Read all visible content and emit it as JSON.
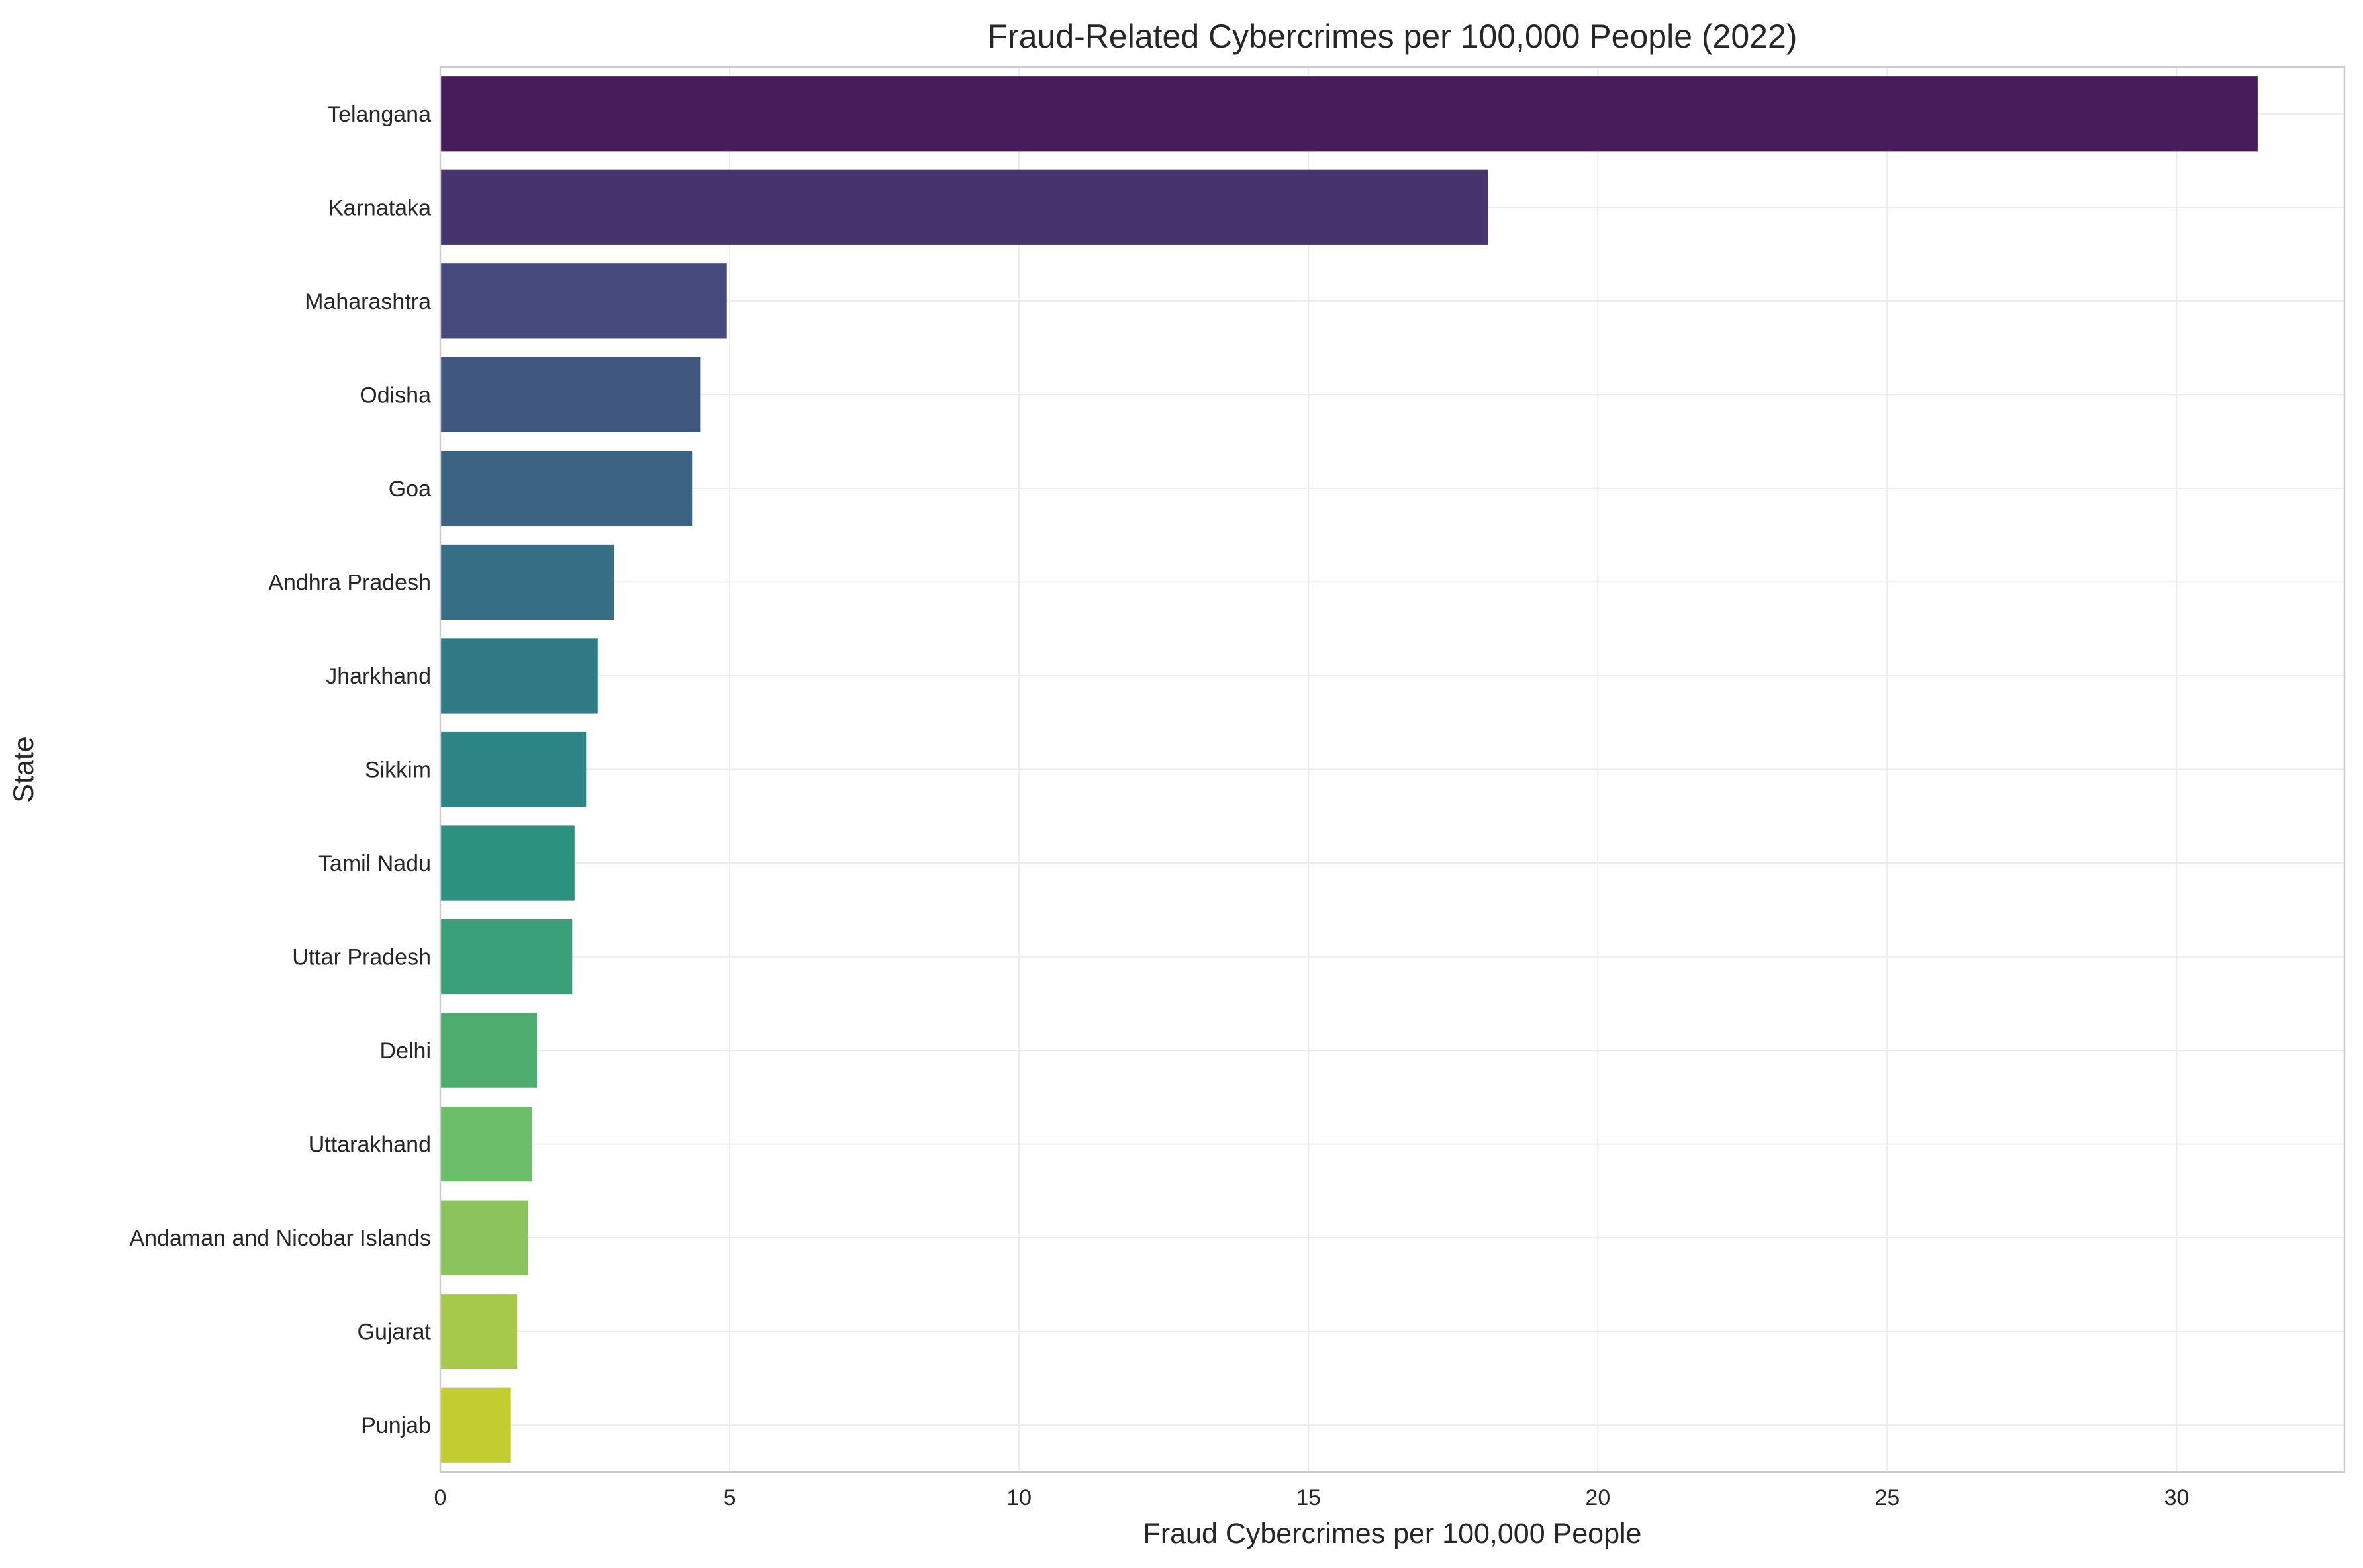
{
  "chart_data": {
    "type": "bar",
    "orientation": "horizontal",
    "title": "Fraud-Related Cybercrimes per 100,000 People (2022)",
    "xlabel": "Fraud Cybercrimes per 100,000 People",
    "ylabel": "State",
    "xlim": [
      0,
      32.9
    ],
    "xticks": [
      0,
      5,
      10,
      15,
      20,
      25,
      30
    ],
    "grid": true,
    "categories": [
      "Telangana",
      "Karnataka",
      "Maharashtra",
      "Odisha",
      "Goa",
      "Andhra Pradesh",
      "Jharkhand",
      "Sikkim",
      "Tamil Nadu",
      "Uttar Pradesh",
      "Delhi",
      "Uttarakhand",
      "Andaman and Nicobar Islands",
      "Gujarat",
      "Punjab"
    ],
    "values": [
      31.4,
      18.1,
      4.95,
      4.5,
      4.35,
      3.0,
      2.72,
      2.52,
      2.32,
      2.28,
      1.67,
      1.58,
      1.52,
      1.33,
      1.22
    ],
    "colors": [
      "#481c5b",
      "#46346f",
      "#45497c",
      "#40577f",
      "#3c6382",
      "#366f85",
      "#2f7a84",
      "#2c8584",
      "#2b927f",
      "#3aa07a",
      "#4ead6e",
      "#6bbd6a",
      "#8bc35c",
      "#a6c84b",
      "#c2cd2f"
    ]
  }
}
